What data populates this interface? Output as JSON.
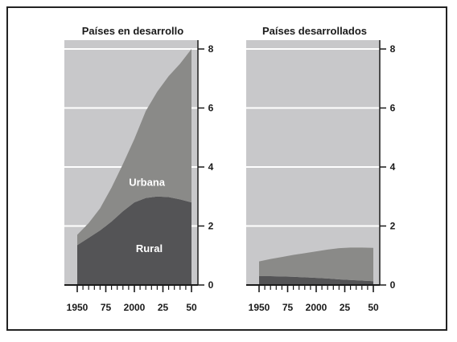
{
  "colors": {
    "background": "#c8c8ca",
    "urban": "#8a8a88",
    "rural": "#545456",
    "grid": "#ffffff",
    "axis": "#1a1a1a"
  },
  "chart_data": [
    {
      "type": "area",
      "stacked": true,
      "title": "Países en desarrollo",
      "x": [
        1950,
        1960,
        1970,
        1980,
        1990,
        2000,
        2010,
        2020,
        2030,
        2040,
        2050
      ],
      "series": [
        {
          "name": "Rural",
          "values": [
            1.35,
            1.6,
            1.85,
            2.15,
            2.5,
            2.8,
            2.95,
            3.0,
            2.98,
            2.9,
            2.8
          ]
        },
        {
          "name": "Urbana",
          "values": [
            0.35,
            0.5,
            0.75,
            1.15,
            1.6,
            2.15,
            2.95,
            3.55,
            4.1,
            4.6,
            5.2
          ]
        }
      ],
      "xticks": [
        "1950",
        "75",
        "2000",
        "25",
        "50"
      ],
      "xtick_values": [
        1950,
        1975,
        2000,
        2025,
        2050
      ],
      "yticks": [
        "0",
        "2",
        "4",
        "6",
        "8"
      ],
      "ytick_values": [
        0,
        2,
        4,
        6,
        8
      ],
      "xlim": [
        1950,
        2050
      ],
      "ylim": [
        0,
        8.3
      ],
      "grid": true,
      "annotations": [
        {
          "text": "Urbana",
          "x": 2011,
          "y": 3.5
        },
        {
          "text": "Rural",
          "x": 2013,
          "y": 1.25
        }
      ]
    },
    {
      "type": "area",
      "stacked": true,
      "title": "Países desarrollados",
      "x": [
        1950,
        1960,
        1970,
        1980,
        1990,
        2000,
        2010,
        2020,
        2030,
        2040,
        2050
      ],
      "series": [
        {
          "name": "Rural",
          "values": [
            0.3,
            0.3,
            0.29,
            0.28,
            0.26,
            0.24,
            0.22,
            0.19,
            0.17,
            0.15,
            0.13
          ]
        },
        {
          "name": "Urbana",
          "values": [
            0.5,
            0.58,
            0.66,
            0.74,
            0.82,
            0.9,
            0.98,
            1.06,
            1.1,
            1.12,
            1.13
          ]
        }
      ],
      "xticks": [
        "1950",
        "75",
        "2000",
        "25",
        "50"
      ],
      "xtick_values": [
        1950,
        1975,
        2000,
        2025,
        2050
      ],
      "yticks": [
        "0",
        "2",
        "4",
        "6",
        "8"
      ],
      "ytick_values": [
        0,
        2,
        4,
        6,
        8
      ],
      "xlim": [
        1950,
        2050
      ],
      "ylim": [
        0,
        8.3
      ],
      "grid": true,
      "annotations": []
    }
  ]
}
